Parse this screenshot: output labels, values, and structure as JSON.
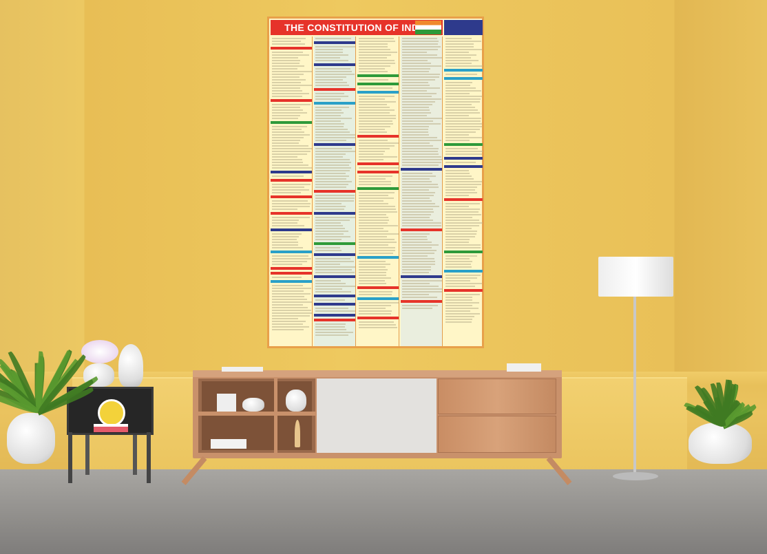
{
  "poster": {
    "title": "THE CONSTITUTION OF INDIA",
    "colors": {
      "title_bar": "#e6332a",
      "frame": "#e8a04a",
      "paper": "#fff6c7",
      "corner_block": "#2e3a8c"
    }
  },
  "scene": {
    "wall_color": "#ecc862",
    "floor_color": "#9a9896",
    "objects": [
      "poster",
      "tv-console",
      "floor-lamp",
      "side-table",
      "clock",
      "vases",
      "potted-plants"
    ]
  }
}
